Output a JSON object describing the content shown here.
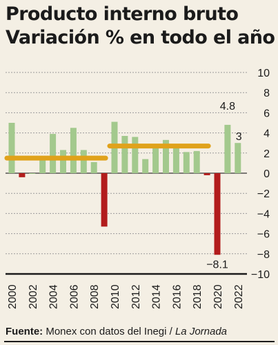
{
  "header": {
    "title_line1": "Producto interno bruto",
    "title_line2": "Variación % en todo el año"
  },
  "source": {
    "label": "Fuente:",
    "text": "Monex con datos del Inegi /",
    "outlet": "La Jornada"
  },
  "colors": {
    "positive_bar": "#a3c98d",
    "negative_bar": "#b21c1c",
    "average_line": "#e0a21b",
    "background": "#f4efe4",
    "grid": "#9a9a9a"
  },
  "chart_data": {
    "type": "bar",
    "title": "Producto interno bruto",
    "subtitle": "Variación % en todo el año",
    "categories": [
      "2000",
      "2001",
      "2002",
      "2003",
      "2004",
      "2005",
      "2006",
      "2007",
      "2008",
      "2009",
      "2010",
      "2011",
      "2012",
      "2013",
      "2014",
      "2015",
      "2016",
      "2017",
      "2018",
      "2019",
      "2020",
      "2021",
      "2022"
    ],
    "values": [
      5.0,
      -0.4,
      0.0,
      1.4,
      3.9,
      2.3,
      4.5,
      2.3,
      1.1,
      -5.3,
      5.1,
      3.7,
      3.6,
      1.4,
      2.8,
      3.3,
      2.6,
      2.1,
      2.2,
      -0.2,
      -8.1,
      4.8,
      3.0
    ],
    "tick_labels_x": [
      "2000",
      "2002",
      "2004",
      "2006",
      "2008",
      "2010",
      "2012",
      "2014",
      "2016",
      "2018",
      "2020",
      "2022"
    ],
    "y_ticks": [
      "10",
      "8",
      "6",
      "4",
      "2",
      "0",
      "−2",
      "−4",
      "−6",
      "−8",
      "−10"
    ],
    "ylim": [
      -10,
      10
    ],
    "averages": [
      {
        "from": "2000",
        "to": "2009",
        "value": 1.5
      },
      {
        "from": "2010",
        "to": "2019",
        "value": 2.7
      }
    ],
    "data_labels": [
      {
        "category": "2020",
        "text": "−8.1"
      },
      {
        "category": "2021",
        "text": "4.8"
      },
      {
        "category": "2022",
        "text": "3"
      }
    ],
    "xlabel": "",
    "ylabel": "",
    "grid": true,
    "y_axis_side": "right"
  }
}
